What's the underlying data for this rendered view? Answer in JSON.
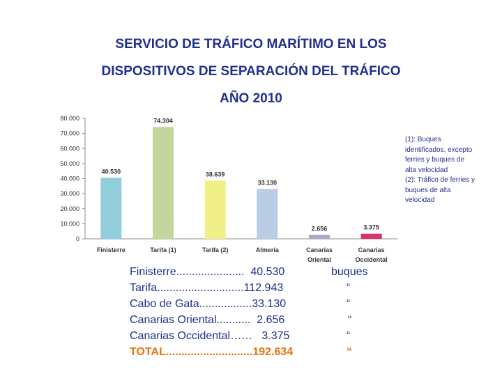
{
  "title": {
    "line1": "SERVICIO DE TRÁFICO MARÍTIMO EN LOS",
    "line2": "DISPOSITIVOS DE SEPARACIÓN DEL TRÁFICO",
    "line3": "AÑO 2010"
  },
  "chart_data": {
    "type": "bar",
    "categories": [
      "Finisterre",
      "Tarifa (1)",
      "Tarifa (2)",
      "Almería",
      "Canarias Oriental",
      "Canarias Occidental"
    ],
    "values": [
      40530,
      74304,
      38639,
      33130,
      2656,
      3375
    ],
    "value_labels": [
      "40.530",
      "74.304",
      "38.639",
      "33.130",
      "2.656",
      "3.375"
    ],
    "colors": [
      "#92cddc",
      "#c3d69b",
      "#f0ef88",
      "#b9cde5",
      "#b3a2c7",
      "#d6336f"
    ],
    "ylim": [
      0,
      80000
    ],
    "yticks": [
      0,
      10000,
      20000,
      30000,
      40000,
      50000,
      60000,
      70000,
      80000
    ],
    "ytick_labels": [
      "0",
      "10.000",
      "20.000",
      "30.000",
      "40.000",
      "50.000",
      "60.000",
      "70.000",
      "80.000"
    ],
    "grid": false
  },
  "notes": {
    "line1": "(1): Buques",
    "line2": "identificados, excepto",
    "line3": "ferries y buques de",
    "line4": "alta velocidad",
    "line5": "(2): Tráfico de ferries y",
    "line6": "buques de alta",
    "line7": "velocidad"
  },
  "summary": [
    {
      "label": "Finisterre......................  40.530",
      "unit": "buques"
    },
    {
      "label": "Tarifa............................112.943",
      "unit": "“"
    },
    {
      "label": "Cabo de Gata.................33.130",
      "unit": "“"
    },
    {
      "label": "Canarias Oriental...........  2.656",
      "unit": "“"
    },
    {
      "label": "Canarias Occidental……   3.375",
      "unit": "“"
    },
    {
      "label": "TOTAL............................192.634",
      "unit": "“"
    }
  ]
}
